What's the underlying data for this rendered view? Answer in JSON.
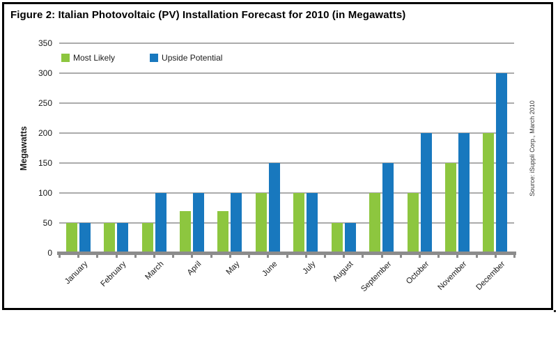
{
  "figure": {
    "title": "Figure 2: Italian Photovoltaic (PV) Installation Forecast for 2010 (in Megawatts)",
    "source_note": "Source: iSuppli Corp., March 2010"
  },
  "chart_data": {
    "type": "bar",
    "title": "Figure 2: Italian Photovoltaic (PV) Installation Forecast for 2010 (in Megawatts)",
    "categories": [
      "January",
      "February",
      "March",
      "April",
      "May",
      "June",
      "July",
      "August",
      "September",
      "October",
      "November",
      "December"
    ],
    "series": [
      {
        "name": "Most Likely",
        "color": "#8DC63F",
        "values": [
          50,
          50,
          50,
          70,
          70,
          100,
          100,
          50,
          100,
          100,
          150,
          200
        ]
      },
      {
        "name": "Upside Potential",
        "color": "#1878BE",
        "values": [
          50,
          50,
          100,
          100,
          100,
          150,
          100,
          50,
          150,
          200,
          200,
          300
        ]
      }
    ],
    "xlabel": "",
    "ylabel": "Megawatts",
    "ylim": [
      0,
      350
    ],
    "ytick_step": 50,
    "grid": true,
    "legend_position": "top-left-inside",
    "gridline_color": "#ABABAB",
    "axis_color": "#8C8C8C"
  }
}
